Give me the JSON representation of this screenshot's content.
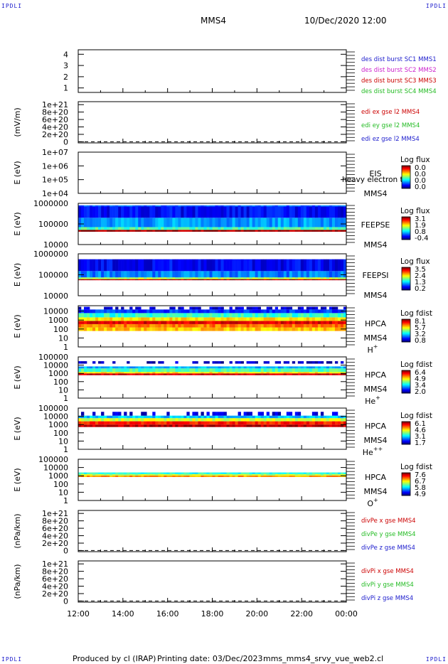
{
  "header": {
    "corner_label": "IPDLI",
    "title": "MMS4",
    "datetime": "10/Dec/2020 12:00"
  },
  "footer": {
    "produced_by": "Produced by cl (IRAP)",
    "printing_date": "Printing date: 03/Dec/2023",
    "filename": "mms_mms4_srvy_vue_web2.cl"
  },
  "chart_data": [
    {
      "type": "line",
      "panel": "spacecraft-indicator",
      "ylabel": "",
      "yticks": [
        "4",
        "3",
        "2",
        "1"
      ],
      "ylim": [
        0.6,
        4.4
      ],
      "legend": [
        {
          "name": "des dist burst SC1 MMS1",
          "color": "#1a1acc"
        },
        {
          "name": "des dist burst SC2 MMS2",
          "color": "#cc22cc"
        },
        {
          "name": "des dist burst SC3 MMS3",
          "color": "#cc0000"
        },
        {
          "name": "des dist burst SC4 MMS4",
          "color": "#22bb22"
        }
      ]
    },
    {
      "type": "line",
      "panel": "edi-efield",
      "ylabel": "(mV/m)",
      "yticks": [
        "1e+21",
        "8e+20",
        "6e+20",
        "4e+20",
        "2e+20",
        "0"
      ],
      "ylim": [
        -3e+19,
        1.08e+21
      ],
      "zero_line": true,
      "legend": [
        {
          "name": "edi ex gse l2 MMS4",
          "color": "#cc0000"
        },
        {
          "name": "edi ey gse l2 MMS4",
          "color": "#22bb22"
        },
        {
          "name": "edi ez gse l2 MMS4",
          "color": "#1a1acc"
        }
      ]
    },
    {
      "type": "heatmap",
      "panel": "EIS",
      "ylabel": "E (eV)",
      "yscale": "log",
      "yticks": [
        "1e+07",
        "1e+06",
        "1e+05",
        "1e+04"
      ],
      "ylim": [
        10000,
        10000000
      ],
      "instrument": [
        "EIS",
        "MMS4"
      ],
      "overlay_text": "heavy electron tof",
      "colorbar_title": "Log flux",
      "colorbar_ticks": [
        "0.0",
        "0.0",
        "0.0",
        "0.0"
      ],
      "data": "empty"
    },
    {
      "type": "heatmap",
      "panel": "FEEPSE",
      "ylabel": "E (eV)",
      "yscale": "log",
      "yticks": [
        "1000000",
        "100000",
        "10000"
      ],
      "ylim": [
        10000,
        1000000
      ],
      "instrument": [
        "FEEPSE",
        "MMS4"
      ],
      "colorbar_title": "Log flux",
      "colorbar_ticks": [
        "3.1",
        "1.9",
        "0.8",
        "-0.4"
      ],
      "energy_bands": [
        {
          "emin": 42000,
          "emax": 52000,
          "level": 0.97
        },
        {
          "emin": 52000,
          "emax": 70000,
          "level": 0.45
        },
        {
          "emin": 70000,
          "emax": 200000,
          "level": 0.28
        },
        {
          "emin": 200000,
          "emax": 700000,
          "level": 0.12
        },
        {
          "emin": 700000,
          "emax": 800000,
          "level": 0.22
        }
      ]
    },
    {
      "type": "heatmap",
      "panel": "FEEPSI",
      "ylabel": "E (eV)",
      "yscale": "log",
      "yticks": [
        "1000000",
        "100000",
        "10000"
      ],
      "ylim": [
        10000,
        1000000
      ],
      "instrument": [
        "FEEPSI",
        "MMS4"
      ],
      "colorbar_title": "Log flux",
      "colorbar_ticks": [
        "3.5",
        "2.4",
        "1.3",
        "0.2"
      ],
      "energy_bands": [
        {
          "emin": 55000,
          "emax": 62000,
          "level": 0.95
        },
        {
          "emin": 62000,
          "emax": 75000,
          "level": 0.55
        },
        {
          "emin": 75000,
          "emax": 150000,
          "level": 0.25
        },
        {
          "emin": 150000,
          "emax": 550000,
          "level": 0.12
        }
      ]
    },
    {
      "type": "heatmap",
      "panel": "HPCA-H+",
      "ylabel": "E (eV)",
      "yscale": "log",
      "yticks": [
        "10000",
        "1000",
        "100",
        "10",
        "1"
      ],
      "ylim": [
        1,
        40000
      ],
      "instrument": [
        "HPCA",
        "MMS4"
      ],
      "species": "H+",
      "colorbar_title": "Log fdist",
      "colorbar_ticks": [
        "8.1",
        "5.7",
        "3.2",
        "0.8"
      ],
      "energy_bands": [
        {
          "emin": 60,
          "emax": 150,
          "level": 0.68
        },
        {
          "emin": 150,
          "emax": 350,
          "level": 0.76
        },
        {
          "emin": 350,
          "emax": 800,
          "level": 0.9
        },
        {
          "emin": 800,
          "emax": 2000,
          "level": 0.65
        },
        {
          "emin": 2000,
          "emax": 6000,
          "level": 0.42
        },
        {
          "emin": 6000,
          "emax": 15000,
          "level": 0.18
        },
        {
          "emin": 15000,
          "emax": 30000,
          "level": 0.08
        }
      ]
    },
    {
      "type": "heatmap",
      "panel": "HPCA-He+",
      "ylabel": "E (eV)",
      "yscale": "log",
      "yticks": [
        "100000",
        "10000",
        "1000",
        "100",
        "10",
        "1"
      ],
      "ylim": [
        1,
        100000
      ],
      "instrument": [
        "HPCA",
        "MMS4"
      ],
      "species": "He+",
      "colorbar_title": "Log fdist",
      "colorbar_ticks": [
        "6.4",
        "4.9",
        "3.4",
        "2.0"
      ],
      "energy_bands": [
        {
          "emin": 600,
          "emax": 1000,
          "level": 0.92
        },
        {
          "emin": 1000,
          "emax": 1500,
          "level": 0.65
        },
        {
          "emin": 1500,
          "emax": 4000,
          "level": 0.45
        },
        {
          "emin": 4000,
          "emax": 7000,
          "level": 0.3
        },
        {
          "emin": 15000,
          "emax": 30000,
          "level": 0.06
        }
      ]
    },
    {
      "type": "heatmap",
      "panel": "HPCA-He++",
      "ylabel": "E (eV)",
      "yscale": "log",
      "yticks": [
        "100000",
        "10000",
        "1000",
        "100",
        "10",
        "1"
      ],
      "ylim": [
        1,
        100000
      ],
      "instrument": [
        "HPCA",
        "MMS4"
      ],
      "species": "He++",
      "colorbar_title": "Log fdist",
      "colorbar_ticks": [
        "6.1",
        "4.6",
        "3.1",
        "1.7"
      ],
      "energy_bands": [
        {
          "emin": 500,
          "emax": 1000,
          "level": 0.95
        },
        {
          "emin": 1000,
          "emax": 2500,
          "level": 0.85
        },
        {
          "emin": 2500,
          "emax": 6000,
          "level": 0.58
        },
        {
          "emin": 6000,
          "emax": 12000,
          "level": 0.32
        },
        {
          "emin": 12000,
          "emax": 35000,
          "level": 0.08
        }
      ]
    },
    {
      "type": "heatmap",
      "panel": "HPCA-O+",
      "ylabel": "E (eV)",
      "yscale": "log",
      "yticks": [
        "100000",
        "10000",
        "1000",
        "100",
        "10",
        "1"
      ],
      "ylim": [
        1,
        100000
      ],
      "instrument": [
        "HPCA",
        "MMS4"
      ],
      "species": "O+",
      "colorbar_title": "Log fdist",
      "colorbar_ticks": [
        "7.6",
        "6.7",
        "5.8",
        "4.9"
      ],
      "energy_bands": [
        {
          "emin": 700,
          "emax": 1100,
          "level": 0.72
        },
        {
          "emin": 1100,
          "emax": 1600,
          "level": 0.55
        },
        {
          "emin": 1600,
          "emax": 2500,
          "level": 0.4
        }
      ]
    },
    {
      "type": "line",
      "panel": "divPe",
      "ylabel": "(nPa/km)",
      "yticks": [
        "1e+21",
        "8e+20",
        "6e+20",
        "4e+20",
        "2e+20",
        "0"
      ],
      "ylim": [
        -3e+19,
        1.08e+21
      ],
      "zero_line": true,
      "legend": [
        {
          "name": "divPe x gse MMS4",
          "color": "#cc0000"
        },
        {
          "name": "divPe y gse MMS4",
          "color": "#22bb22"
        },
        {
          "name": "divPe z gse MMS4",
          "color": "#1a1acc"
        }
      ]
    },
    {
      "type": "line",
      "panel": "divPi",
      "ylabel": "(nPa/km)",
      "yticks": [
        "1e+21",
        "8e+20",
        "6e+20",
        "4e+20",
        "2e+20",
        "0"
      ],
      "ylim": [
        -3e+19,
        1.08e+21
      ],
      "zero_line": true,
      "legend": [
        {
          "name": "divPi x gse MMS4",
          "color": "#cc0000"
        },
        {
          "name": "divPi y gse MMS4",
          "color": "#22bb22"
        },
        {
          "name": "divPi z gse MMS4",
          "color": "#1a1acc"
        }
      ]
    }
  ],
  "time_axis": {
    "ticks": [
      "12:00",
      "14:00",
      "16:00",
      "18:00",
      "20:00",
      "22:00",
      "00:00"
    ],
    "range_hours": [
      12,
      24
    ]
  }
}
